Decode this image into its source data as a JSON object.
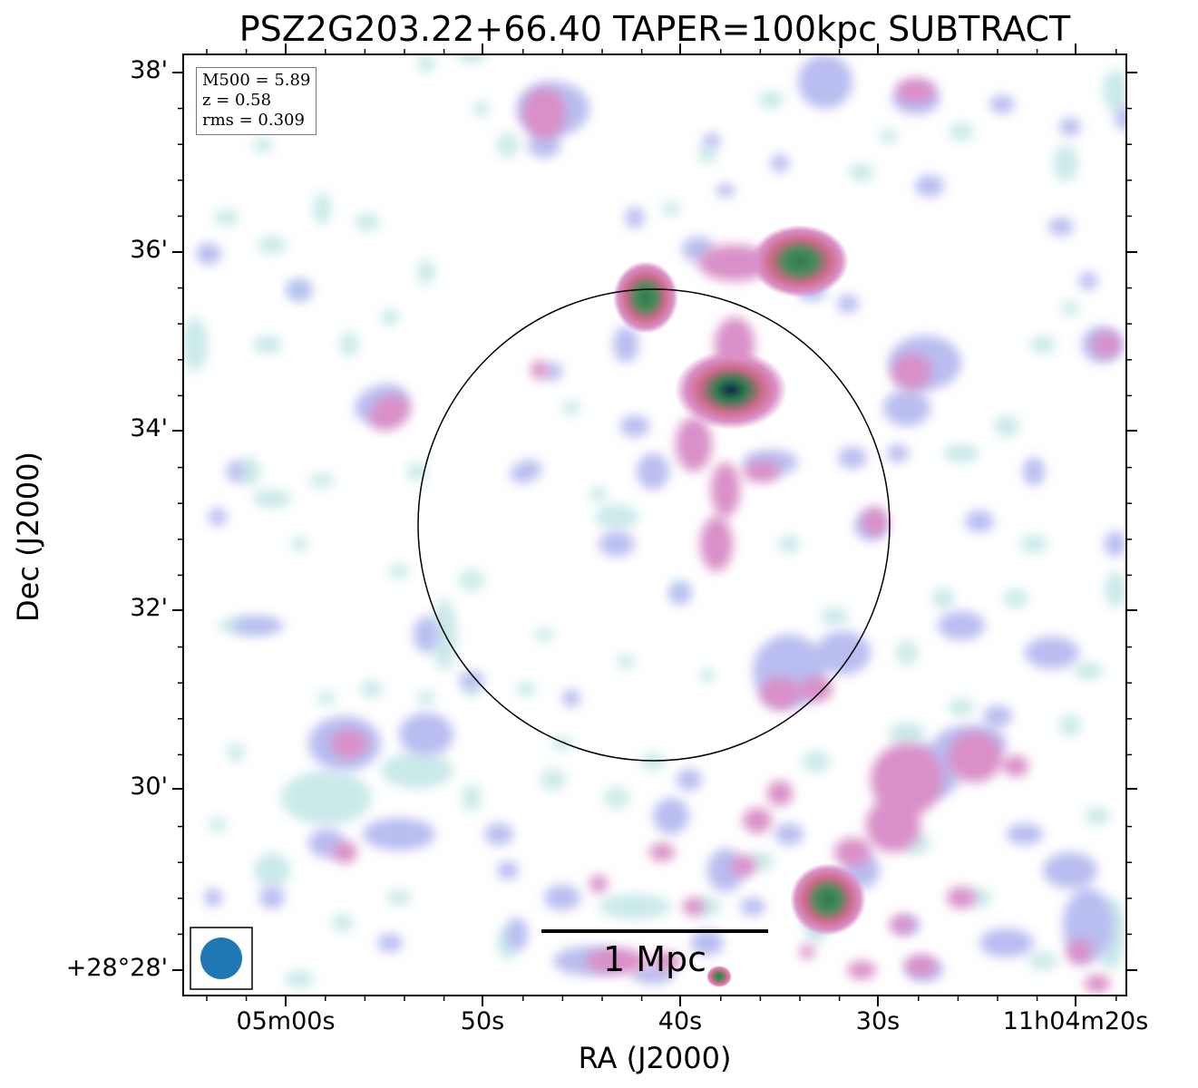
{
  "title": "PSZ2G203.22+66.40 TAPER=100kpc SUBTRACT",
  "axes": {
    "xlabel": "RA (J2000)",
    "ylabel": "Dec (J2000)",
    "xticks": [
      "05m00s",
      "50s",
      "40s",
      "30s",
      "11h04m20s"
    ],
    "yticks": [
      "38'",
      "36'",
      "34'",
      "32'",
      "30'",
      "+28°28'"
    ]
  },
  "info": {
    "m500": "M500 = 5.89",
    "z": "z = 0.58",
    "rms": "rms = 0.309"
  },
  "scalebar": {
    "label": "1 Mpc"
  },
  "colors": {
    "faint": "#c8e8e8",
    "low": "#b7bdf0",
    "mid": "#d98fc7",
    "high": "#cc6b88",
    "peak": "#2f7a4d",
    "core": "#0f2a4a",
    "beam": "#1f77b4"
  }
}
